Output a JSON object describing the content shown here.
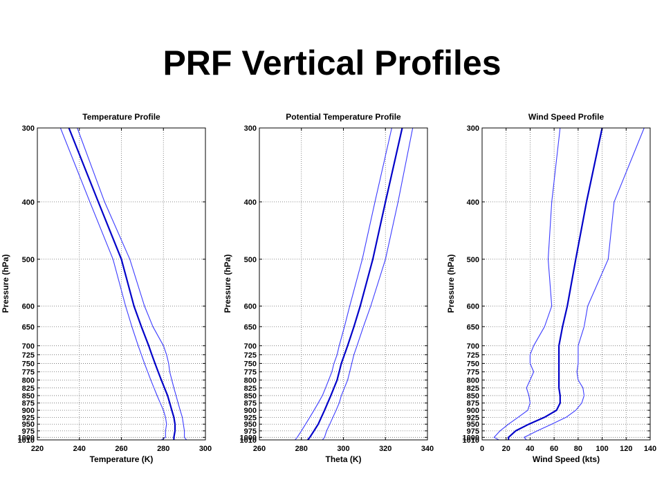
{
  "slide": {
    "title": "PRF Vertical Profiles"
  },
  "colors": {
    "mean": "#0000c8",
    "bounds": "#3a3aff",
    "grid": "#666666"
  },
  "pressure_levels": [
    1010,
    1000,
    975,
    950,
    925,
    900,
    875,
    850,
    825,
    800,
    775,
    750,
    725,
    700,
    650,
    600,
    500,
    400,
    300
  ],
  "chart_data": [
    {
      "type": "line",
      "title": "Temperature Profile",
      "xlabel": "Temperature (K)",
      "ylabel": "Pressure (hPa)",
      "xlim": [
        220,
        300
      ],
      "xticks": [
        220,
        240,
        260,
        280,
        300
      ],
      "ylim": [
        1010,
        300
      ],
      "yscale": "log",
      "grid": true,
      "series": [
        {
          "role": "lower",
          "points": [
            [
              279,
              1010
            ],
            [
              281,
              1000
            ],
            [
              281,
              975
            ],
            [
              281.5,
              950
            ],
            [
              281,
              925
            ],
            [
              280,
              900
            ],
            [
              278.5,
              875
            ],
            [
              277,
              850
            ],
            [
              275.5,
              825
            ],
            [
              274,
              800
            ],
            [
              272.5,
              775
            ],
            [
              271,
              750
            ],
            [
              269.5,
              725
            ],
            [
              268,
              700
            ],
            [
              265,
              650
            ],
            [
              262,
              600
            ],
            [
              256,
              500
            ],
            [
              245,
              400
            ],
            [
              231,
              300
            ]
          ]
        },
        {
          "role": "mean",
          "points": [
            [
              285,
              1010
            ],
            [
              285,
              1000
            ],
            [
              285.5,
              975
            ],
            [
              285.5,
              950
            ],
            [
              285,
              925
            ],
            [
              284,
              900
            ],
            [
              283,
              875
            ],
            [
              282,
              850
            ],
            [
              280.5,
              825
            ],
            [
              279,
              800
            ],
            [
              277.5,
              775
            ],
            [
              276,
              750
            ],
            [
              274.5,
              725
            ],
            [
              273,
              700
            ],
            [
              269.5,
              650
            ],
            [
              266,
              600
            ],
            [
              260,
              500
            ],
            [
              249,
              400
            ],
            [
              235,
              300
            ]
          ]
        },
        {
          "role": "upper",
          "points": [
            [
              291,
              1010
            ],
            [
              290,
              1000
            ],
            [
              290,
              975
            ],
            [
              289.5,
              950
            ],
            [
              289,
              925
            ],
            [
              288,
              900
            ],
            [
              287,
              875
            ],
            [
              286,
              850
            ],
            [
              285,
              825
            ],
            [
              284,
              800
            ],
            [
              283,
              775
            ],
            [
              282.5,
              750
            ],
            [
              281.5,
              725
            ],
            [
              280,
              700
            ],
            [
              275,
              650
            ],
            [
              271,
              600
            ],
            [
              264,
              500
            ],
            [
              252,
              400
            ],
            [
              239,
              300
            ]
          ]
        }
      ]
    },
    {
      "type": "line",
      "title": "Potential Temperature Profile",
      "xlabel": "Theta (K)",
      "ylabel": "Pressure (hPa)",
      "xlim": [
        260,
        340
      ],
      "xticks": [
        260,
        280,
        300,
        320,
        340
      ],
      "ylim": [
        1010,
        300
      ],
      "yscale": "log",
      "grid": true,
      "series": [
        {
          "role": "lower",
          "points": [
            [
              277,
              1010
            ],
            [
              278,
              1000
            ],
            [
              280,
              975
            ],
            [
              282,
              950
            ],
            [
              284,
              925
            ],
            [
              286,
              900
            ],
            [
              288,
              875
            ],
            [
              290,
              850
            ],
            [
              291.5,
              825
            ],
            [
              293,
              800
            ],
            [
              294.5,
              775
            ],
            [
              295.5,
              750
            ],
            [
              297,
              725
            ],
            [
              298,
              700
            ],
            [
              300.5,
              650
            ],
            [
              303,
              600
            ],
            [
              309,
              500
            ],
            [
              315,
              400
            ],
            [
              323,
              300
            ]
          ]
        },
        {
          "role": "mean",
          "points": [
            [
              283,
              1010
            ],
            [
              284,
              1000
            ],
            [
              286,
              975
            ],
            [
              288,
              950
            ],
            [
              289.5,
              925
            ],
            [
              291,
              900
            ],
            [
              292.5,
              875
            ],
            [
              294,
              850
            ],
            [
              295.5,
              825
            ],
            [
              297,
              800
            ],
            [
              298,
              775
            ],
            [
              299,
              750
            ],
            [
              300.5,
              725
            ],
            [
              302,
              700
            ],
            [
              305,
              650
            ],
            [
              308,
              600
            ],
            [
              314,
              500
            ],
            [
              320,
              400
            ],
            [
              328,
              300
            ]
          ]
        },
        {
          "role": "upper",
          "points": [
            [
              290,
              1010
            ],
            [
              291,
              1000
            ],
            [
              292,
              975
            ],
            [
              293.5,
              950
            ],
            [
              295,
              925
            ],
            [
              296.5,
              900
            ],
            [
              298,
              875
            ],
            [
              299,
              850
            ],
            [
              300.5,
              825
            ],
            [
              302,
              800
            ],
            [
              303,
              775
            ],
            [
              304,
              750
            ],
            [
              305,
              725
            ],
            [
              306.5,
              700
            ],
            [
              309.5,
              650
            ],
            [
              313,
              600
            ],
            [
              320,
              500
            ],
            [
              326,
              400
            ],
            [
              333,
              300
            ]
          ]
        }
      ]
    },
    {
      "type": "line",
      "title": "Wind Speed Profile",
      "xlabel": "Wind Speed (kts)",
      "ylabel": "Pressure (hPa)",
      "xlim": [
        0,
        140
      ],
      "xticks": [
        0,
        20,
        40,
        60,
        80,
        100,
        120,
        140
      ],
      "ylim": [
        1010,
        300
      ],
      "yscale": "log",
      "grid": true,
      "series": [
        {
          "role": "lower",
          "points": [
            [
              14,
              1010
            ],
            [
              10,
              1000
            ],
            [
              15,
              975
            ],
            [
              22,
              950
            ],
            [
              30,
              925
            ],
            [
              38,
              900
            ],
            [
              40,
              875
            ],
            [
              39,
              850
            ],
            [
              37,
              825
            ],
            [
              40,
              800
            ],
            [
              43,
              775
            ],
            [
              40,
              750
            ],
            [
              40,
              725
            ],
            [
              43,
              700
            ],
            [
              52,
              650
            ],
            [
              58,
              600
            ],
            [
              55,
              500
            ],
            [
              58,
              400
            ],
            [
              65,
              300
            ]
          ]
        },
        {
          "role": "mean",
          "points": [
            [
              22,
              1010
            ],
            [
              22,
              1000
            ],
            [
              28,
              975
            ],
            [
              39,
              950
            ],
            [
              52,
              925
            ],
            [
              62,
              900
            ],
            [
              65,
              875
            ],
            [
              65,
              850
            ],
            [
              64,
              825
            ],
            [
              64,
              800
            ],
            [
              64,
              775
            ],
            [
              64,
              750
            ],
            [
              64,
              725
            ],
            [
              64,
              700
            ],
            [
              67,
              650
            ],
            [
              71,
              600
            ],
            [
              78,
              500
            ],
            [
              87,
              400
            ],
            [
              100,
              300
            ]
          ]
        },
        {
          "role": "upper",
          "points": [
            [
              37,
              1010
            ],
            [
              35,
              1000
            ],
            [
              46,
              975
            ],
            [
              58,
              950
            ],
            [
              70,
              925
            ],
            [
              78,
              900
            ],
            [
              83,
              875
            ],
            [
              85,
              850
            ],
            [
              84,
              825
            ],
            [
              80,
              800
            ],
            [
              79,
              775
            ],
            [
              80,
              750
            ],
            [
              80,
              725
            ],
            [
              80,
              700
            ],
            [
              85,
              650
            ],
            [
              88,
              600
            ],
            [
              105,
              500
            ],
            [
              110,
              400
            ],
            [
              135,
              300
            ]
          ]
        }
      ]
    }
  ]
}
